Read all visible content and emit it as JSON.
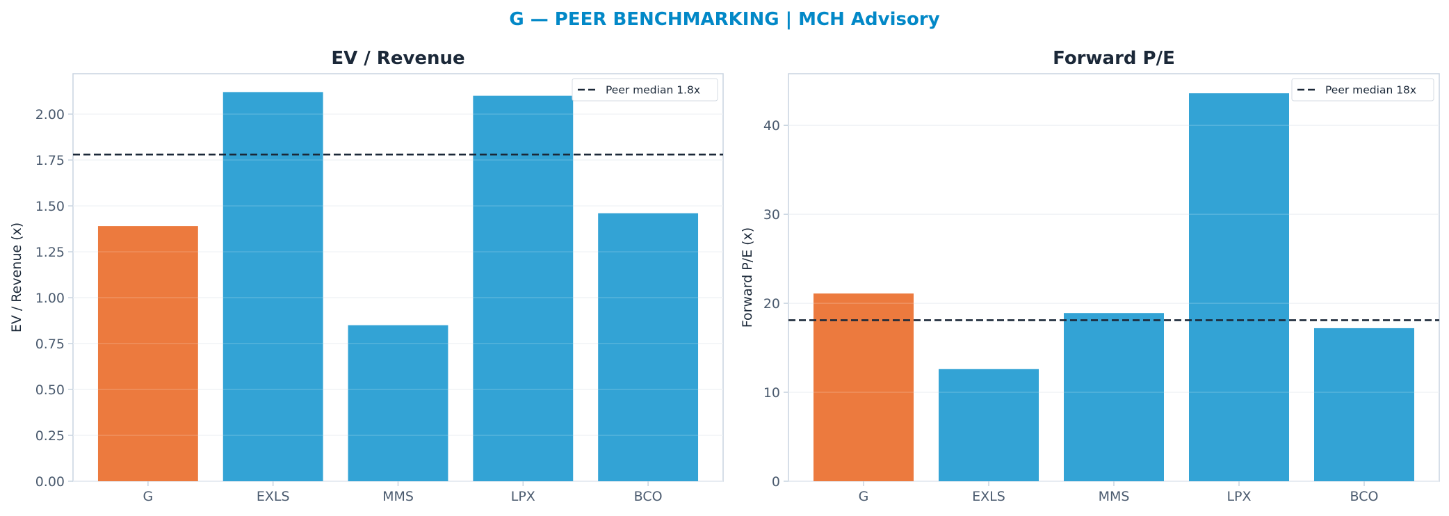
{
  "suptitle": "G — PEER BENCHMARKING | MCH Advisory",
  "colors": {
    "suptitle": "#0288c7",
    "highlight_bar": "#ec7a3e",
    "peer_bar": "#33a3d5",
    "median_line": "#1b2838",
    "axis": "#c8d4e0",
    "grid": "#e9eef3",
    "tick_text": "#4a5a6e"
  },
  "chart_data": [
    {
      "type": "bar",
      "title": "EV / Revenue",
      "xlabel": "",
      "ylabel": "EV / Revenue (x)",
      "categories": [
        "G",
        "EXLS",
        "MMS",
        "LPX",
        "BCO"
      ],
      "values": [
        1.39,
        2.12,
        0.85,
        2.1,
        1.46
      ],
      "highlight_index": 0,
      "ylim": [
        0,
        2.22
      ],
      "yticks": [
        0,
        0.25,
        0.5,
        0.75,
        1.0,
        1.25,
        1.5,
        1.75,
        2.0
      ],
      "ytick_labels": [
        "0.00",
        "0.25",
        "0.50",
        "0.75",
        "1.00",
        "1.25",
        "1.50",
        "1.75",
        "2.00"
      ],
      "reference_line": {
        "value": 1.78,
        "label": "Peer median 1.8x",
        "style": "dashed"
      },
      "legend": "top-right",
      "grid": true
    },
    {
      "type": "bar",
      "title": "Forward P/E",
      "xlabel": "",
      "ylabel": "Forward P/E (x)",
      "categories": [
        "G",
        "EXLS",
        "MMS",
        "LPX",
        "BCO"
      ],
      "values": [
        21.1,
        12.6,
        18.9,
        43.6,
        17.2
      ],
      "highlight_index": 0,
      "ylim": [
        0,
        45.8
      ],
      "yticks": [
        0,
        10,
        20,
        30,
        40
      ],
      "ytick_labels": [
        "0",
        "10",
        "20",
        "30",
        "40"
      ],
      "reference_line": {
        "value": 18.1,
        "label": "Peer median 18x",
        "style": "dashed"
      },
      "legend": "top-right",
      "grid": true
    }
  ]
}
